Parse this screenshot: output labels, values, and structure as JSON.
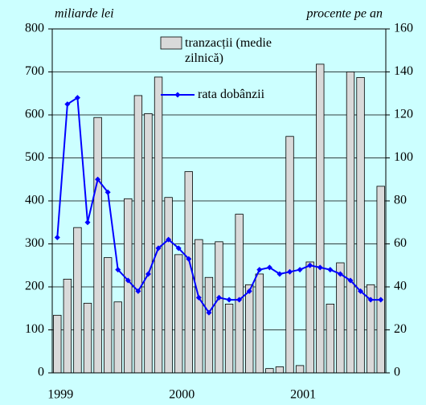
{
  "chart_data": {
    "type": "bar-line",
    "y_label": "miliarde lei",
    "y2_label": "procente pe an",
    "categories": [
      "1999",
      null,
      null,
      null,
      null,
      null,
      null,
      null,
      null,
      null,
      null,
      null,
      "2000",
      null,
      null,
      null,
      null,
      null,
      null,
      null,
      null,
      null,
      null,
      null,
      "2001",
      null,
      null,
      null,
      null,
      null,
      null,
      null,
      null
    ],
    "series": [
      {
        "name": "tranzacții (medie zilnică)",
        "kind": "bar",
        "color": "#d9d9d9",
        "values": [
          134,
          218,
          338,
          162,
          594,
          268,
          165,
          405,
          645,
          603,
          688,
          408,
          275,
          468,
          310,
          222,
          305,
          160,
          369,
          205,
          230,
          10,
          14,
          550,
          17,
          258,
          718,
          160,
          256,
          700,
          687,
          205,
          434
        ]
      },
      {
        "name": "rata dobânzii",
        "kind": "line",
        "axis": "y2",
        "color": "#0000ff",
        "values": [
          63,
          125,
          128,
          70,
          90,
          84,
          48,
          43,
          38,
          46,
          58,
          62,
          58,
          53,
          35,
          28,
          35,
          34,
          34,
          38,
          48,
          49,
          46,
          47,
          48,
          50,
          49,
          48,
          46,
          43,
          38,
          34,
          34
        ]
      }
    ],
    "ylim": [
      0,
      800
    ],
    "yticks": [
      0,
      100,
      200,
      300,
      400,
      500,
      600,
      700,
      800
    ],
    "y2lim": [
      0,
      160
    ],
    "y2ticks": [
      0,
      20,
      40,
      60,
      80,
      100,
      120,
      140,
      160
    ],
    "grid": true
  }
}
